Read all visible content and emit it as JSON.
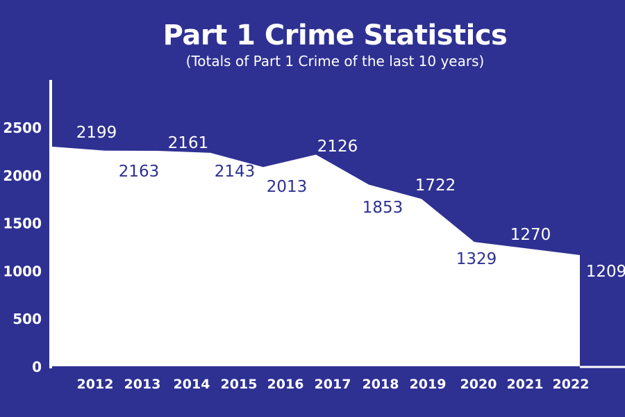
{
  "chart_data": {
    "type": "area",
    "title": "Part 1 Crime Statistics",
    "subtitle": "(Totals of Part 1 Crime of the last 10 years)",
    "xlabel": "",
    "ylabel": "",
    "categories": [
      "2012",
      "2013",
      "2014",
      "2015",
      "2016",
      "2017",
      "2018",
      "2019",
      "2020",
      "2021",
      "2022"
    ],
    "values": [
      2199,
      2163,
      2161,
      2143,
      2013,
      2126,
      1853,
      1722,
      1329,
      1270,
      1209
    ],
    "y_ticks": [
      "0",
      "500",
      "1000",
      "1500",
      "2000",
      "2500"
    ],
    "ylim": [
      0,
      2900
    ],
    "grid": false,
    "legend": "none",
    "colors": {
      "background": "#2e3192",
      "fill": "#ffffff",
      "data_label": "#2e3192"
    }
  }
}
